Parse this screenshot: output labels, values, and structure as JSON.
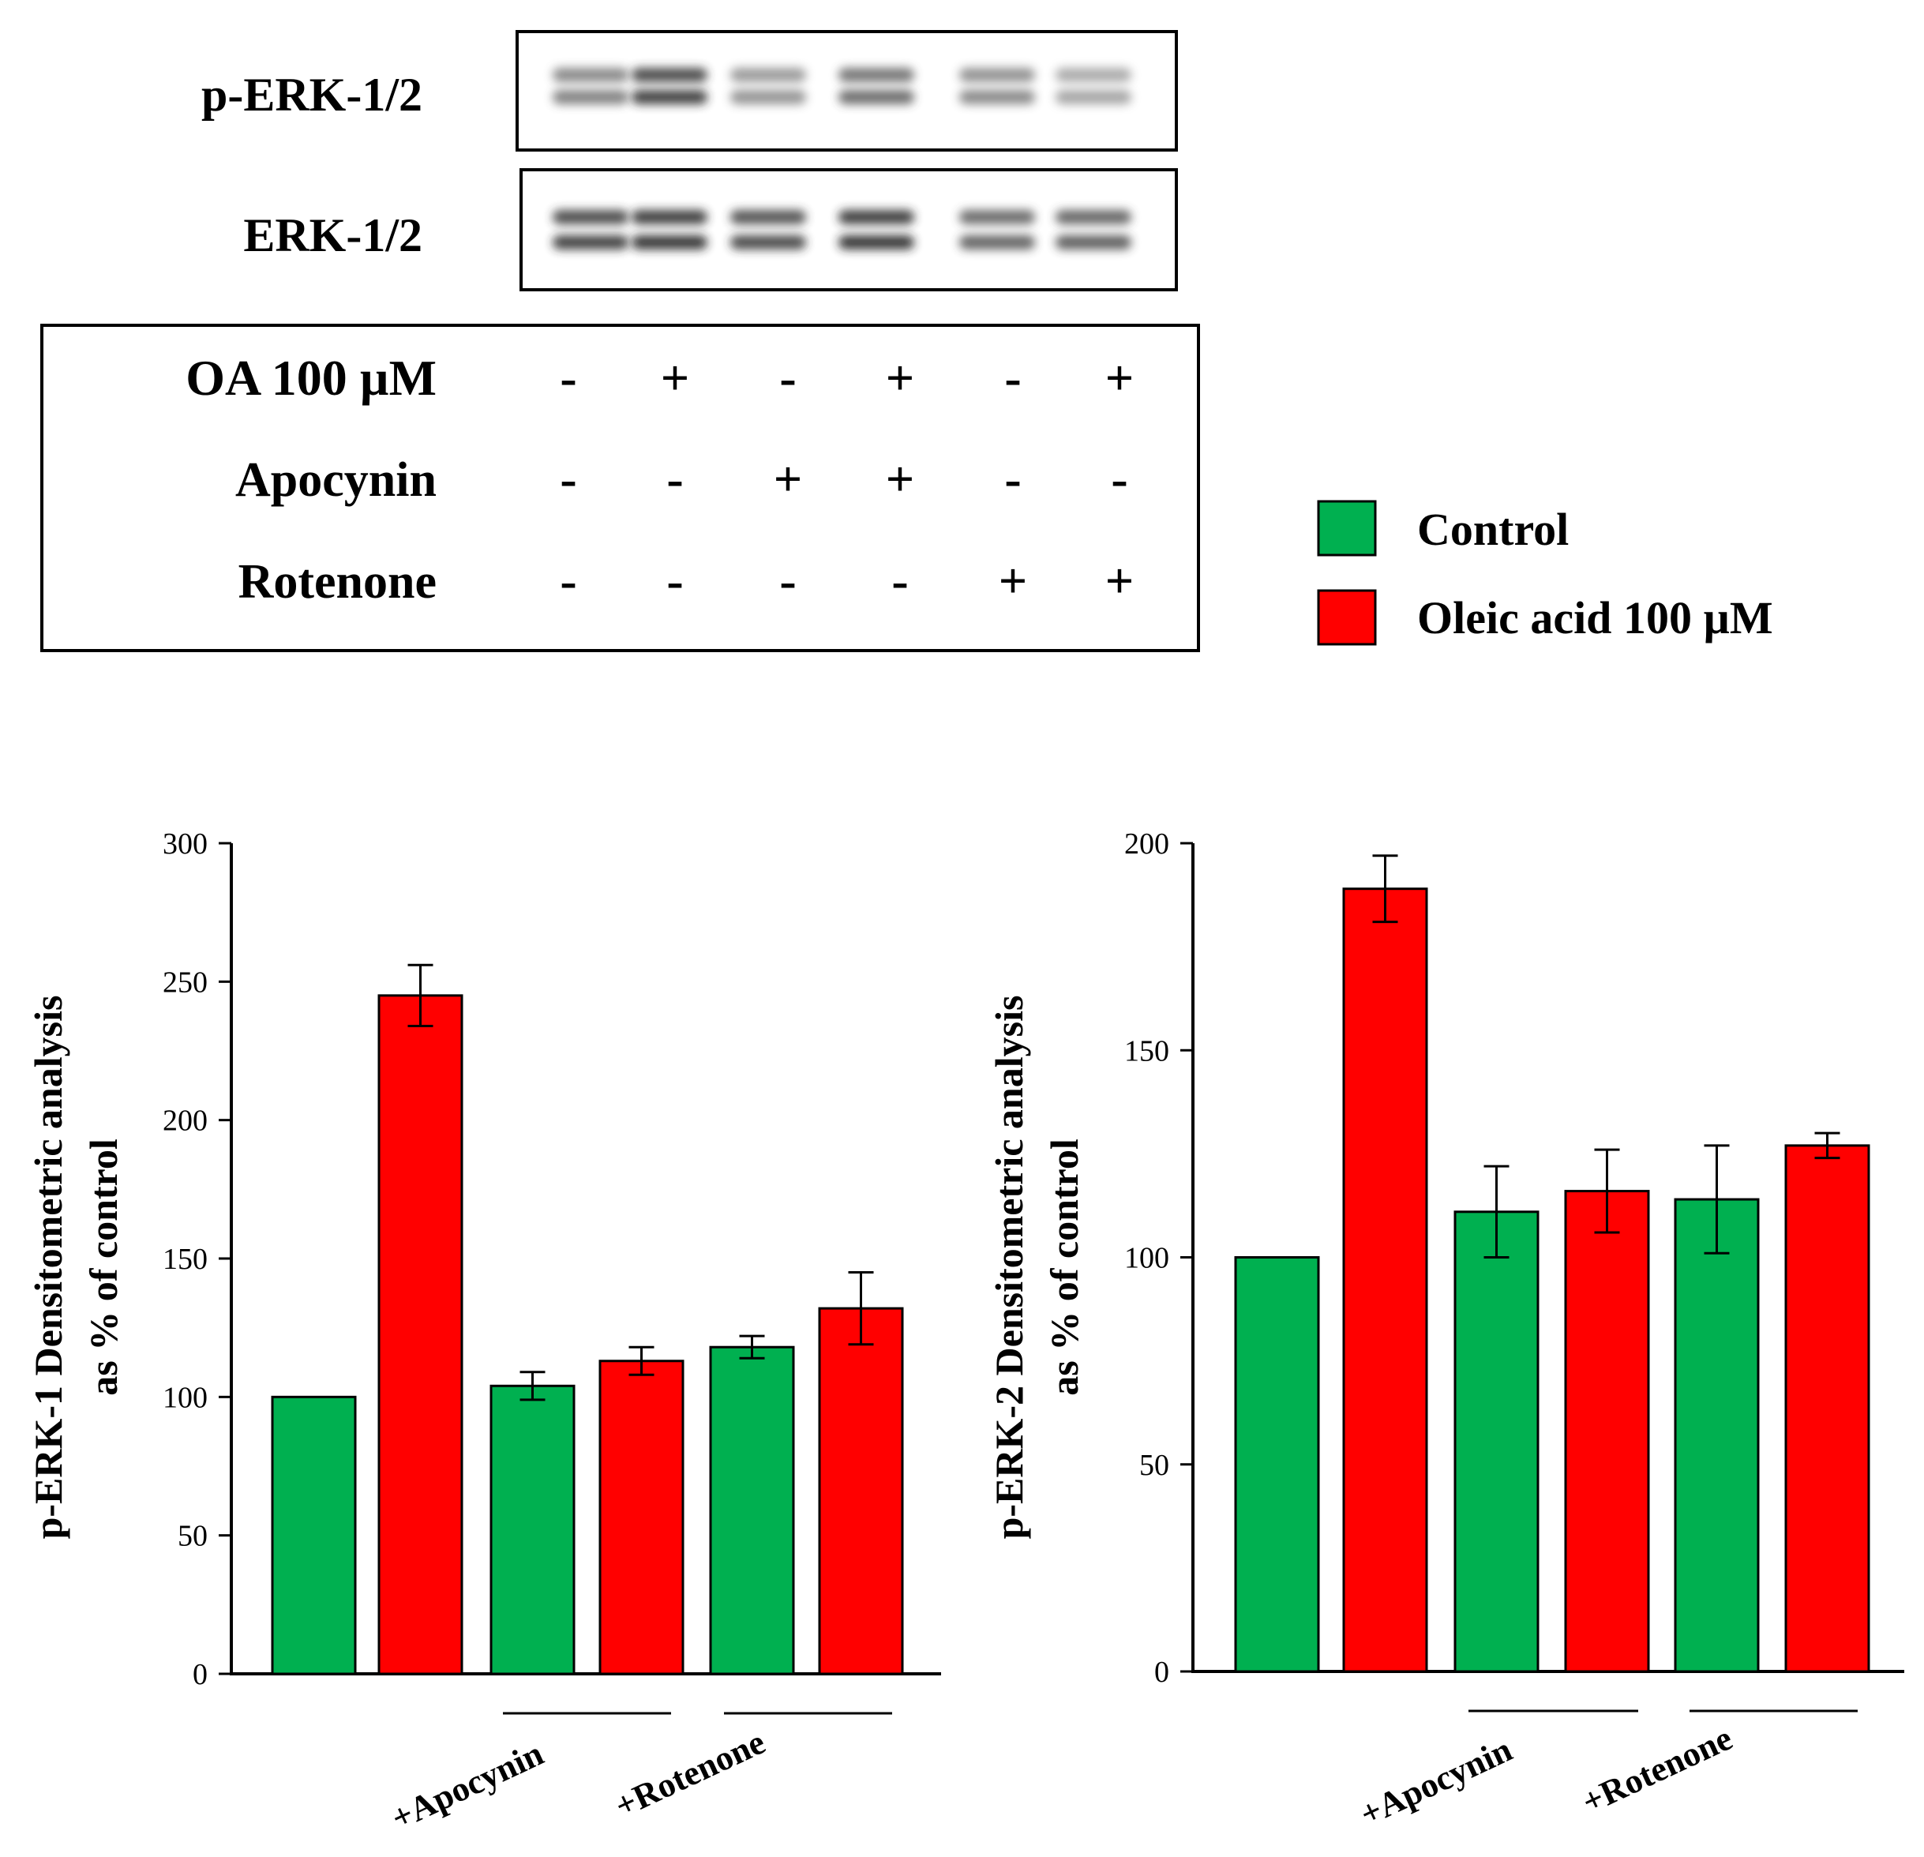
{
  "blot": {
    "rows": [
      {
        "label": "p-ERK-1/2",
        "lane_intensity": [
          0.55,
          0.85,
          0.45,
          0.65,
          0.5,
          0.35
        ]
      },
      {
        "label": "ERK-1/2",
        "lane_intensity": [
          0.85,
          0.9,
          0.8,
          0.9,
          0.7,
          0.72
        ]
      }
    ]
  },
  "treatment_table": {
    "rows": [
      {
        "label": "OA 100 µM",
        "values": [
          "-",
          "+",
          "-",
          "+",
          "-",
          "+"
        ]
      },
      {
        "label": "Apocynin",
        "values": [
          "-",
          "-",
          "+",
          "+",
          "-",
          "-"
        ]
      },
      {
        "label": "Rotenone",
        "values": [
          "-",
          "-",
          "-",
          "-",
          "+",
          "+"
        ]
      }
    ]
  },
  "legend": {
    "items": [
      {
        "label": "Control",
        "color": "#00b050"
      },
      {
        "label": "Oleic acid 100 µM",
        "color": "#ff0000"
      }
    ]
  },
  "chart_data": [
    {
      "type": "bar",
      "ylabel_line1": "p-ERK-1 Densitometric analysis",
      "ylabel_line2": "as % of control",
      "ylim": [
        0,
        300
      ],
      "yticks": [
        "0",
        "50",
        "100",
        "150",
        "200",
        "250",
        "300"
      ],
      "group_labels": [
        "+Apocynin",
        "+Rotenone"
      ],
      "bars": [
        {
          "series": "Control",
          "value": 100,
          "error": 0
        },
        {
          "series": "Oleic acid 100 µM",
          "value": 245,
          "error": 11
        },
        {
          "series": "Control",
          "value": 104,
          "error": 5
        },
        {
          "series": "Oleic acid 100 µM",
          "value": 113,
          "error": 5
        },
        {
          "series": "Control",
          "value": 118,
          "error": 4
        },
        {
          "series": "Oleic acid 100 µM",
          "value": 132,
          "error": 13
        }
      ]
    },
    {
      "type": "bar",
      "ylabel_line1": "p-ERK-2 Densitometric analysis",
      "ylabel_line2": "as % of control",
      "ylim": [
        0,
        200
      ],
      "yticks": [
        "0",
        "50",
        "100",
        "150",
        "200"
      ],
      "group_labels": [
        "+Apocynin",
        "+Rotenone"
      ],
      "bars": [
        {
          "series": "Control",
          "value": 100,
          "error": 0
        },
        {
          "series": "Oleic acid 100 µM",
          "value": 189,
          "error": 8
        },
        {
          "series": "Control",
          "value": 111,
          "error": 11
        },
        {
          "series": "Oleic acid 100 µM",
          "value": 116,
          "error": 10
        },
        {
          "series": "Control",
          "value": 114,
          "error": 13
        },
        {
          "series": "Oleic acid 100 µM",
          "value": 127,
          "error": 3
        }
      ]
    }
  ]
}
